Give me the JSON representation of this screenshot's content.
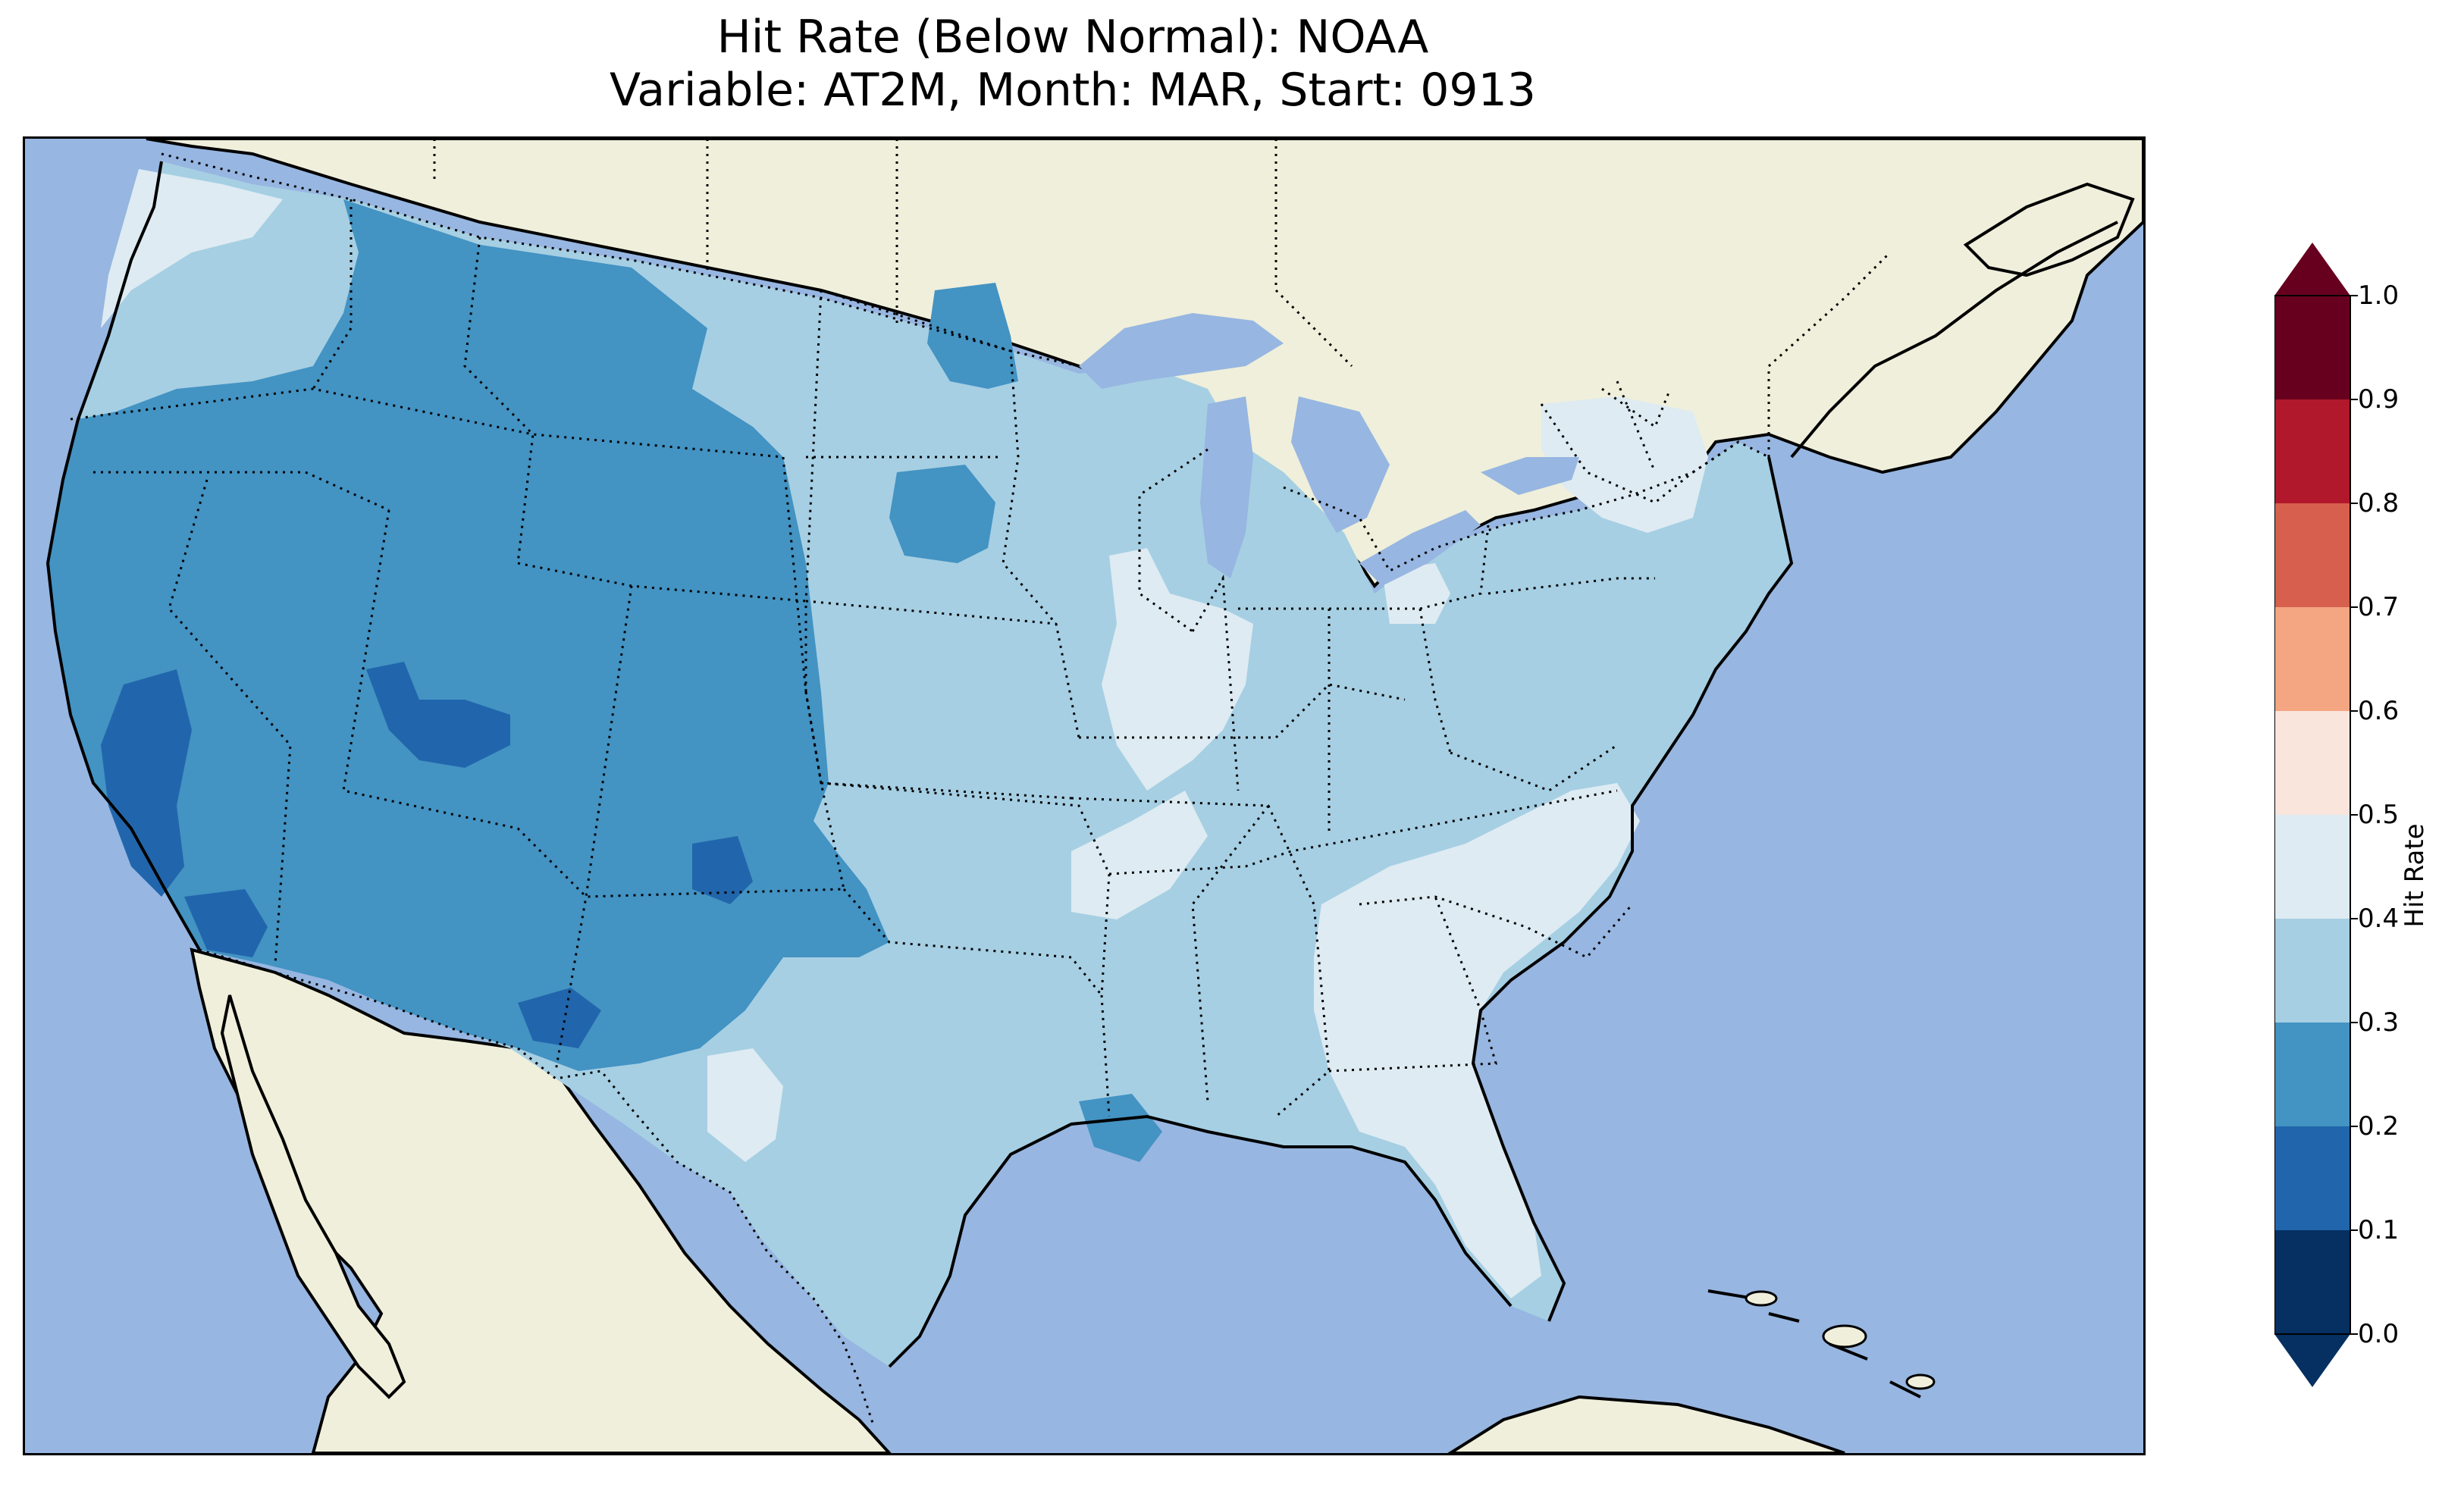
{
  "title": {
    "line1": "Hit Rate (Below Normal): NOAA",
    "line2": "Variable: AT2M, Month: MAR, Start: 0913"
  },
  "colorbar": {
    "label": "Hit Rate",
    "ticks": [
      "0.0",
      "0.1",
      "0.2",
      "0.3",
      "0.4",
      "0.5",
      "0.6",
      "0.7",
      "0.8",
      "0.9",
      "1.0"
    ],
    "bins": [
      {
        "range": [
          0.0,
          0.1
        ],
        "color": "#053061"
      },
      {
        "range": [
          0.1,
          0.2
        ],
        "color": "#2166ac"
      },
      {
        "range": [
          0.2,
          0.3
        ],
        "color": "#4393c3"
      },
      {
        "range": [
          0.3,
          0.4
        ],
        "color": "#a6cfe3"
      },
      {
        "range": [
          0.4,
          0.5
        ],
        "color": "#deebf2"
      },
      {
        "range": [
          0.5,
          0.6
        ],
        "color": "#f9e5dc"
      },
      {
        "range": [
          0.6,
          0.7
        ],
        "color": "#f4a582"
      },
      {
        "range": [
          0.7,
          0.8
        ],
        "color": "#d6604d"
      },
      {
        "range": [
          0.8,
          0.9
        ],
        "color": "#b2182b"
      },
      {
        "range": [
          0.9,
          1.0
        ],
        "color": "#67001f"
      }
    ],
    "extend_under_color": "#053061",
    "extend_over_color": "#67001f"
  },
  "map": {
    "ocean_color": "#97b6e1",
    "land_color": "#efefdb",
    "regions": [
      {
        "name": "pacific-northwest",
        "hit_rate": 0.35
      },
      {
        "name": "northern-rockies",
        "hit_rate": 0.25
      },
      {
        "name": "great-basin",
        "hit_rate": 0.25
      },
      {
        "name": "southwest",
        "hit_rate": 0.25
      },
      {
        "name": "central-california-valley",
        "hit_rate": 0.15
      },
      {
        "name": "central-utah",
        "hit_rate": 0.15
      },
      {
        "name": "great-plains",
        "hit_rate": 0.35
      },
      {
        "name": "midwest",
        "hit_rate": 0.35
      },
      {
        "name": "mississippi-valley",
        "hit_rate": 0.45
      },
      {
        "name": "northeast",
        "hit_rate": 0.35
      },
      {
        "name": "southeast",
        "hit_rate": 0.45
      },
      {
        "name": "florida",
        "hit_rate": 0.45
      },
      {
        "name": "gulf-coast",
        "hit_rate": 0.35
      }
    ]
  }
}
